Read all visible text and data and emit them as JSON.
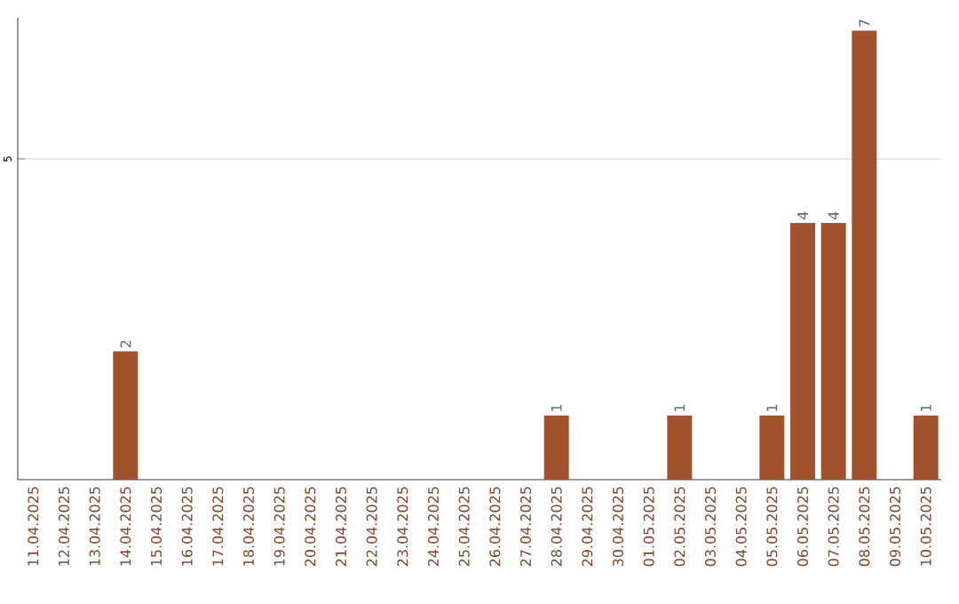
{
  "chart_data": {
    "type": "bar",
    "categories": [
      "11.04.2025",
      "12.04.2025",
      "13.04.2025",
      "14.04.2025",
      "15.04.2025",
      "16.04.2025",
      "17.04.2025",
      "18.04.2025",
      "19.04.2025",
      "20.04.2025",
      "21.04.2025",
      "22.04.2025",
      "23.04.2025",
      "24.04.2025",
      "25.04.2025",
      "26.04.2025",
      "27.04.2025",
      "28.04.2025",
      "29.04.2025",
      "30.04.2025",
      "01.05.2025",
      "02.05.2025",
      "03.05.2025",
      "04.05.2025",
      "05.05.2025",
      "06.05.2025",
      "07.05.2025",
      "08.05.2025",
      "09.05.2025",
      "10.05.2025"
    ],
    "values": [
      0,
      0,
      0,
      2,
      0,
      0,
      0,
      0,
      0,
      0,
      0,
      0,
      0,
      0,
      0,
      0,
      0,
      1,
      0,
      0,
      0,
      1,
      0,
      0,
      1,
      4,
      4,
      7,
      0,
      1
    ],
    "value_labels": [
      null,
      null,
      null,
      "2",
      null,
      null,
      null,
      null,
      null,
      null,
      null,
      null,
      null,
      null,
      null,
      null,
      null,
      "1",
      null,
      null,
      null,
      "1",
      null,
      null,
      "1",
      "4",
      "4",
      "7",
      null,
      "1"
    ],
    "color": "#a0522d",
    "ylim": [
      0,
      7.2
    ],
    "yticks": [
      5
    ],
    "grid": "y"
  }
}
